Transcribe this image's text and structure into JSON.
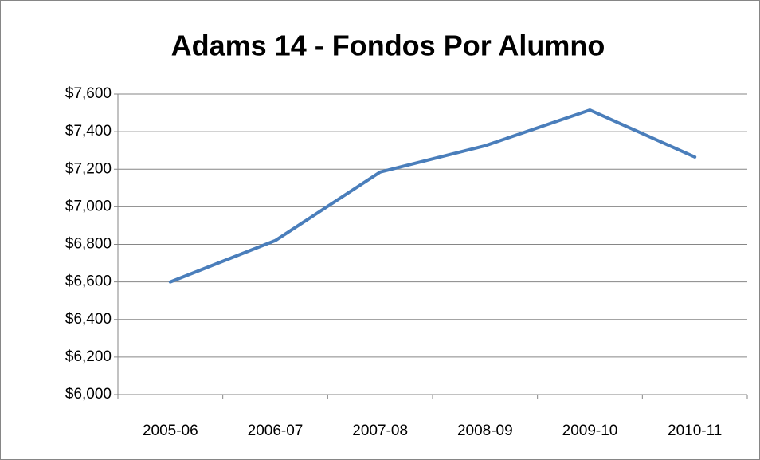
{
  "chart_data": {
    "type": "line",
    "title": "Adams 14 - Fondos Por Alumno",
    "categories": [
      "2005-06",
      "2006-07",
      "2007-08",
      "2008-09",
      "2009-10",
      "2010-11"
    ],
    "series": [
      {
        "name": "Fondos Por Alumno",
        "color": "#4a7ebb",
        "values": [
          6600,
          6820,
          7185,
          7325,
          7515,
          7265
        ]
      }
    ],
    "ylim": [
      6000,
      7600
    ],
    "yticks": [
      {
        "value": 6000,
        "label": "$6,000"
      },
      {
        "value": 6200,
        "label": "$6,200"
      },
      {
        "value": 6400,
        "label": "$6,400"
      },
      {
        "value": 6600,
        "label": "$6,600"
      },
      {
        "value": 6800,
        "label": "$6,800"
      },
      {
        "value": 7000,
        "label": "$7,000"
      },
      {
        "value": 7200,
        "label": "$7,200"
      },
      {
        "value": 7400,
        "label": "$7,400"
      },
      {
        "value": 7600,
        "label": "$7,600"
      }
    ],
    "grid": true,
    "legend": false
  }
}
